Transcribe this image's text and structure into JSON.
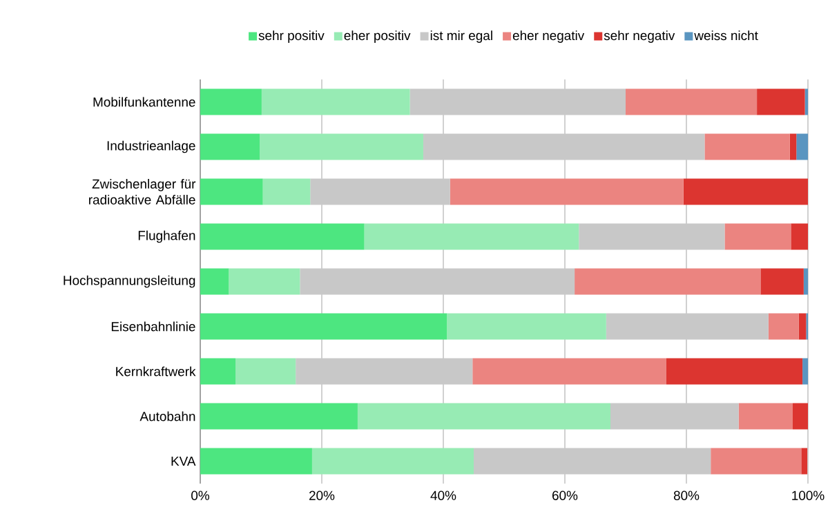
{
  "chart_data": {
    "type": "bar",
    "orientation": "horizontal",
    "stacked": true,
    "grid": "x",
    "legend": "top",
    "categories": [
      "Mobilfunkantenne",
      "Industrieanlage",
      "Zwischenlager für radioaktive Abfälle",
      "Flughafen",
      "Hochspannungsleitung",
      "Eisenbahnlinie",
      "Kernkraftwerk",
      "Autobahn",
      "KVA"
    ],
    "series": [
      {
        "name": "sehr positiv",
        "color": "#4de680",
        "values": [
          10.1,
          9.8,
          10.3,
          27.0,
          4.7,
          40.6,
          5.8,
          25.9,
          18.4
        ]
      },
      {
        "name": "eher positiv",
        "color": "#97ebb4",
        "values": [
          24.4,
          26.9,
          7.8,
          35.3,
          11.7,
          26.2,
          9.9,
          41.6,
          26.6
        ]
      },
      {
        "name": "ist mir egal",
        "color": "#c8c8c8",
        "values": [
          35.5,
          46.3,
          23.0,
          24.0,
          45.2,
          26.7,
          29.1,
          21.1,
          39.0
        ]
      },
      {
        "name": "eher negativ",
        "color": "#eb8480",
        "values": [
          21.6,
          14.0,
          38.4,
          10.9,
          30.6,
          5.0,
          31.9,
          8.9,
          14.9
        ]
      },
      {
        "name": "sehr negativ",
        "color": "#dc3530",
        "values": [
          7.9,
          1.1,
          20.5,
          2.8,
          7.1,
          1.2,
          22.4,
          2.5,
          1.0
        ]
      },
      {
        "name": "weiss nicht",
        "color": "#5a95c0",
        "values": [
          0.5,
          1.9,
          0,
          0,
          0.7,
          0.3,
          0.9,
          0,
          null
        ]
      }
    ],
    "xlim": [
      0,
      100
    ],
    "xticks": [
      {
        "value": 0,
        "label": "0%"
      },
      {
        "value": 20,
        "label": "20%"
      },
      {
        "value": 40,
        "label": "40%"
      },
      {
        "value": 60,
        "label": "60%"
      },
      {
        "value": 80,
        "label": "80%"
      },
      {
        "value": 100,
        "label": "100%"
      }
    ]
  }
}
